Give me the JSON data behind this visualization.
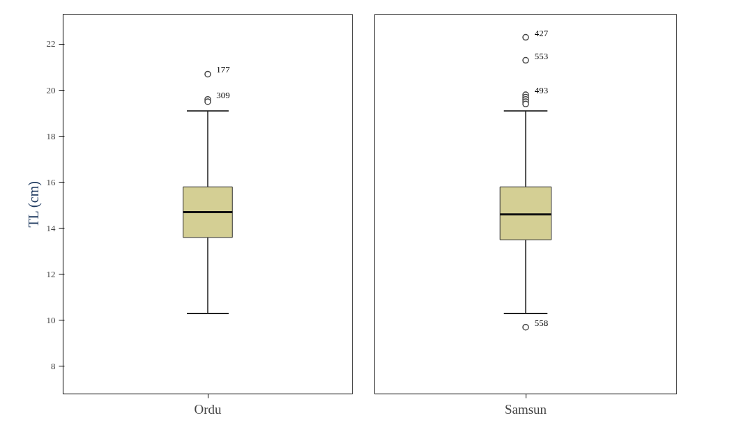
{
  "chart_data": [
    {
      "type": "box",
      "ylabel": "TL (cm)",
      "categories": [
        "Ordu"
      ],
      "color": "#d4cf94",
      "boxes": [
        {
          "low": 10.3,
          "q1": 13.6,
          "median": 14.7,
          "q3": 15.8,
          "high": 19.1,
          "outliers": [
            20.7,
            19.6,
            19.5
          ]
        }
      ],
      "ylim": [
        6.8,
        23.3
      ],
      "yticks": [
        8,
        10,
        12,
        14,
        16,
        18,
        20,
        22
      ],
      "grid": false,
      "annotations": [
        "177",
        "309"
      ]
    },
    {
      "type": "box",
      "categories": [
        "Samsun"
      ],
      "color": "#d4cf94",
      "boxes": [
        {
          "low": 10.3,
          "q1": 13.5,
          "median": 14.6,
          "q3": 15.8,
          "high": 19.1,
          "outliers": [
            22.3,
            21.3,
            19.8,
            9.7,
            19.7,
            19.6,
            19.5,
            19.4
          ]
        }
      ],
      "ylim": [
        6.8,
        23.3
      ],
      "yticks": [
        8,
        10,
        12,
        14,
        16,
        18,
        20,
        22
      ],
      "grid": false,
      "tick_labels": "x",
      "annotations": [
        "427",
        "553",
        "493",
        "558"
      ]
    }
  ]
}
